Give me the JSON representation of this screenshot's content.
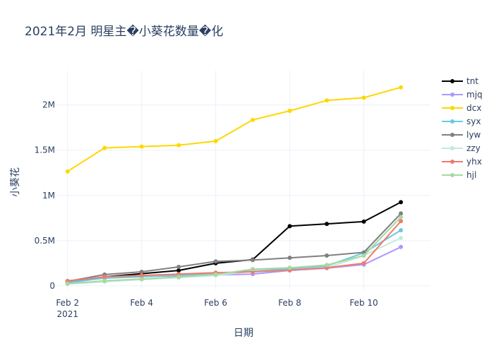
{
  "chart_data": {
    "type": "line",
    "title": "2021年2月 明星主�小葵花数量�化",
    "xlabel": "日期",
    "ylabel": "小葵花",
    "x": [
      "2021-02-02",
      "2021-02-03",
      "2021-02-04",
      "2021-02-05",
      "2021-02-06",
      "2021-02-07",
      "2021-02-08",
      "2021-02-09",
      "2021-02-10",
      "2021-02-11"
    ],
    "x_ticks": [
      {
        "date": "2021-02-02",
        "label": "Feb 2",
        "sublabel": "2021"
      },
      {
        "date": "2021-02-04",
        "label": "Feb 4",
        "sublabel": ""
      },
      {
        "date": "2021-02-06",
        "label": "Feb 6",
        "sublabel": ""
      },
      {
        "date": "2021-02-08",
        "label": "Feb 8",
        "sublabel": ""
      },
      {
        "date": "2021-02-10",
        "label": "Feb 10",
        "sublabel": ""
      }
    ],
    "ylim": [
      -40000,
      2380000
    ],
    "y_ticks": [
      {
        "value": 0,
        "label": "0"
      },
      {
        "value": 500000,
        "label": "0.5M"
      },
      {
        "value": 1000000,
        "label": "1M"
      },
      {
        "value": 1500000,
        "label": "1.5M"
      },
      {
        "value": 2000000,
        "label": "2M"
      }
    ],
    "grid": true,
    "legend_position": "right",
    "series": [
      {
        "name": "tnt",
        "color": "#000000",
        "values": [
          45000,
          100000,
          135000,
          170000,
          250000,
          290000,
          660000,
          685000,
          710000,
          925000
        ]
      },
      {
        "name": "mjq",
        "color": "#ab99ff",
        "values": [
          30000,
          90000,
          105000,
          110000,
          120000,
          130000,
          170000,
          195000,
          235000,
          430000
        ]
      },
      {
        "name": "dcx",
        "color": "#ffd700",
        "values": [
          1265000,
          1525000,
          1540000,
          1555000,
          1600000,
          1835000,
          1935000,
          2050000,
          2080000,
          2195000
        ]
      },
      {
        "name": "syx",
        "color": "#6bc9e8",
        "values": [
          40000,
          85000,
          100000,
          120000,
          135000,
          165000,
          190000,
          220000,
          365000,
          615000
        ]
      },
      {
        "name": "lyw",
        "color": "#808080",
        "values": [
          50000,
          125000,
          155000,
          210000,
          270000,
          285000,
          310000,
          335000,
          370000,
          800000
        ]
      },
      {
        "name": "zzy",
        "color": "#c3eadc",
        "values": [
          20000,
          45000,
          70000,
          90000,
          115000,
          160000,
          175000,
          200000,
          335000,
          530000
        ]
      },
      {
        "name": "yhx",
        "color": "#f07b6b",
        "values": [
          55000,
          100000,
          115000,
          130000,
          145000,
          155000,
          175000,
          200000,
          250000,
          715000
        ]
      },
      {
        "name": "hjl",
        "color": "#a8d8a0",
        "values": [
          25000,
          55000,
          75000,
          100000,
          125000,
          185000,
          200000,
          230000,
          335000,
          760000
        ]
      }
    ]
  }
}
